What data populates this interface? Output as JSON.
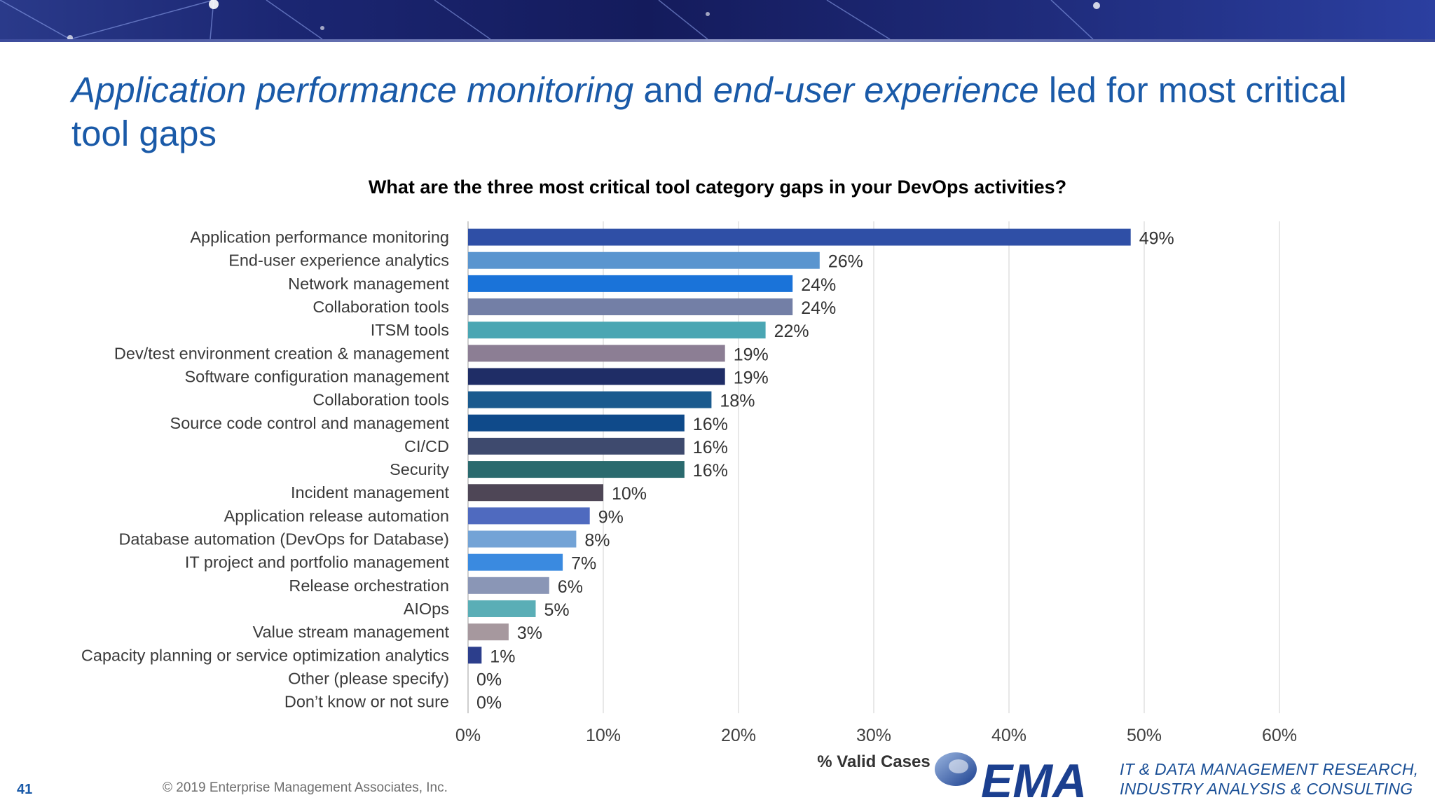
{
  "slide": {
    "title_part1": "Application performance monitoring",
    "title_part2": " and ",
    "title_part3": "end-user experience",
    "title_part4": " led for most critical tool gaps",
    "copyright": "© 2019 Enterprise Management Associates, Inc.",
    "page_number": "41",
    "logo_text": "EMA",
    "tagline_line1": "IT & DATA MANAGEMENT RESEARCH,",
    "tagline_line2": "INDUSTRY ANALYSIS & CONSULTING"
  },
  "chart_data": {
    "type": "bar",
    "orientation": "horizontal",
    "title": "What are the three most critical tool category gaps in your DevOps activities?",
    "xlabel": "% Valid Cases",
    "ylabel": "",
    "xlim": [
      0,
      60
    ],
    "x_ticks": [
      "0%",
      "10%",
      "20%",
      "30%",
      "40%",
      "50%",
      "60%"
    ],
    "grid": true,
    "categories": [
      "Application performance monitoring",
      "End-user experience analytics",
      "Network management",
      "Collaboration tools",
      "ITSM tools",
      "Dev/test environment creation & management",
      "Software configuration management",
      "Collaboration tools",
      "Source code control and management",
      "CI/CD",
      "Security",
      "Incident management",
      "Application release automation",
      "Database automation (DevOps for Database)",
      "IT project and portfolio management",
      "Release orchestration",
      "AIOps",
      "Value stream management",
      "Capacity planning or service optimization analytics",
      "Other (please specify)",
      "Don’t know or not sure"
    ],
    "values": [
      49,
      26,
      24,
      24,
      22,
      19,
      19,
      18,
      16,
      16,
      16,
      10,
      9,
      8,
      7,
      6,
      5,
      3,
      1,
      0,
      0
    ],
    "value_labels": [
      "49%",
      "26%",
      "24%",
      "24%",
      "22%",
      "19%",
      "19%",
      "18%",
      "16%",
      "16%",
      "16%",
      "10%",
      "9%",
      "8%",
      "7%",
      "6%",
      "5%",
      "3%",
      "1%",
      "0%",
      "0%"
    ],
    "bar_colors": [
      "#2f4fa6",
      "#5a95cf",
      "#1a73d9",
      "#737fa6",
      "#4aa6b3",
      "#8c7e94",
      "#1f2d66",
      "#1a5a8e",
      "#0f4a8a",
      "#3e4a6e",
      "#2a6a6e",
      "#4e4656",
      "#4f6abf",
      "#73a3d6",
      "#3a8ae0",
      "#8a96b6",
      "#5aaeb6",
      "#a6989e",
      "#2c3e8c",
      "#aab4cc",
      "#aab4cc"
    ]
  }
}
